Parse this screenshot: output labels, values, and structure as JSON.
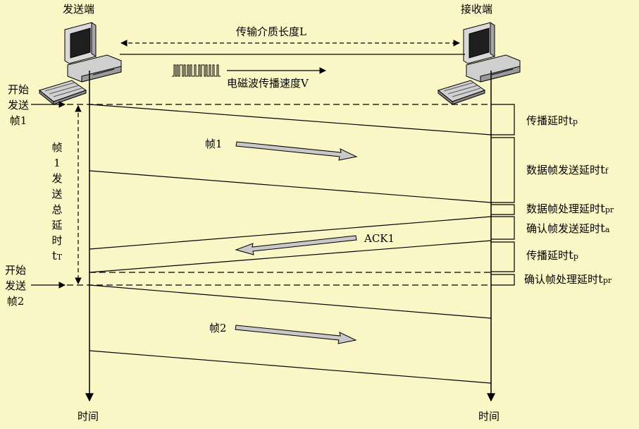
{
  "sender": {
    "title": "发送端",
    "time_label": "时间"
  },
  "receiver": {
    "title": "接收端",
    "time_label": "时间"
  },
  "medium_length": "传输介质长度L",
  "wave_speed": "电磁波传播速度V",
  "start_frame1": [
    "开始",
    "发送",
    "帧1"
  ],
  "start_frame2": [
    "开始",
    "发送",
    "帧2"
  ],
  "total_delay": {
    "chars": [
      "帧",
      "1",
      "发",
      "送",
      "总",
      "延",
      "时"
    ],
    "symbol": "t",
    "sub": "T"
  },
  "frame1_label": "帧1",
  "ack_label": "ACK1",
  "frame2_label": "帧2",
  "delays": {
    "prop1": {
      "text": "传播延时",
      "symbol": "t",
      "sub": "p"
    },
    "frame_send": {
      "text": "数据帧发送延时",
      "symbol": "t",
      "sub": "f"
    },
    "frame_proc": {
      "text": "数据帧处理延时",
      "symbol": "t",
      "sub": "pr"
    },
    "ack_send": {
      "text": "确认帧发送延时",
      "symbol": "t",
      "sub": "a"
    },
    "prop2": {
      "text": "传播延时",
      "symbol": "t",
      "sub": "p"
    },
    "ack_proc": {
      "text": "确认帧处理延时",
      "symbol": "t",
      "sub": "pr"
    }
  },
  "colors": {
    "background": "#fbf6c6",
    "line": "#000000",
    "arrow_fill": "#c8c8c8",
    "computer": "#c0c0c0"
  }
}
